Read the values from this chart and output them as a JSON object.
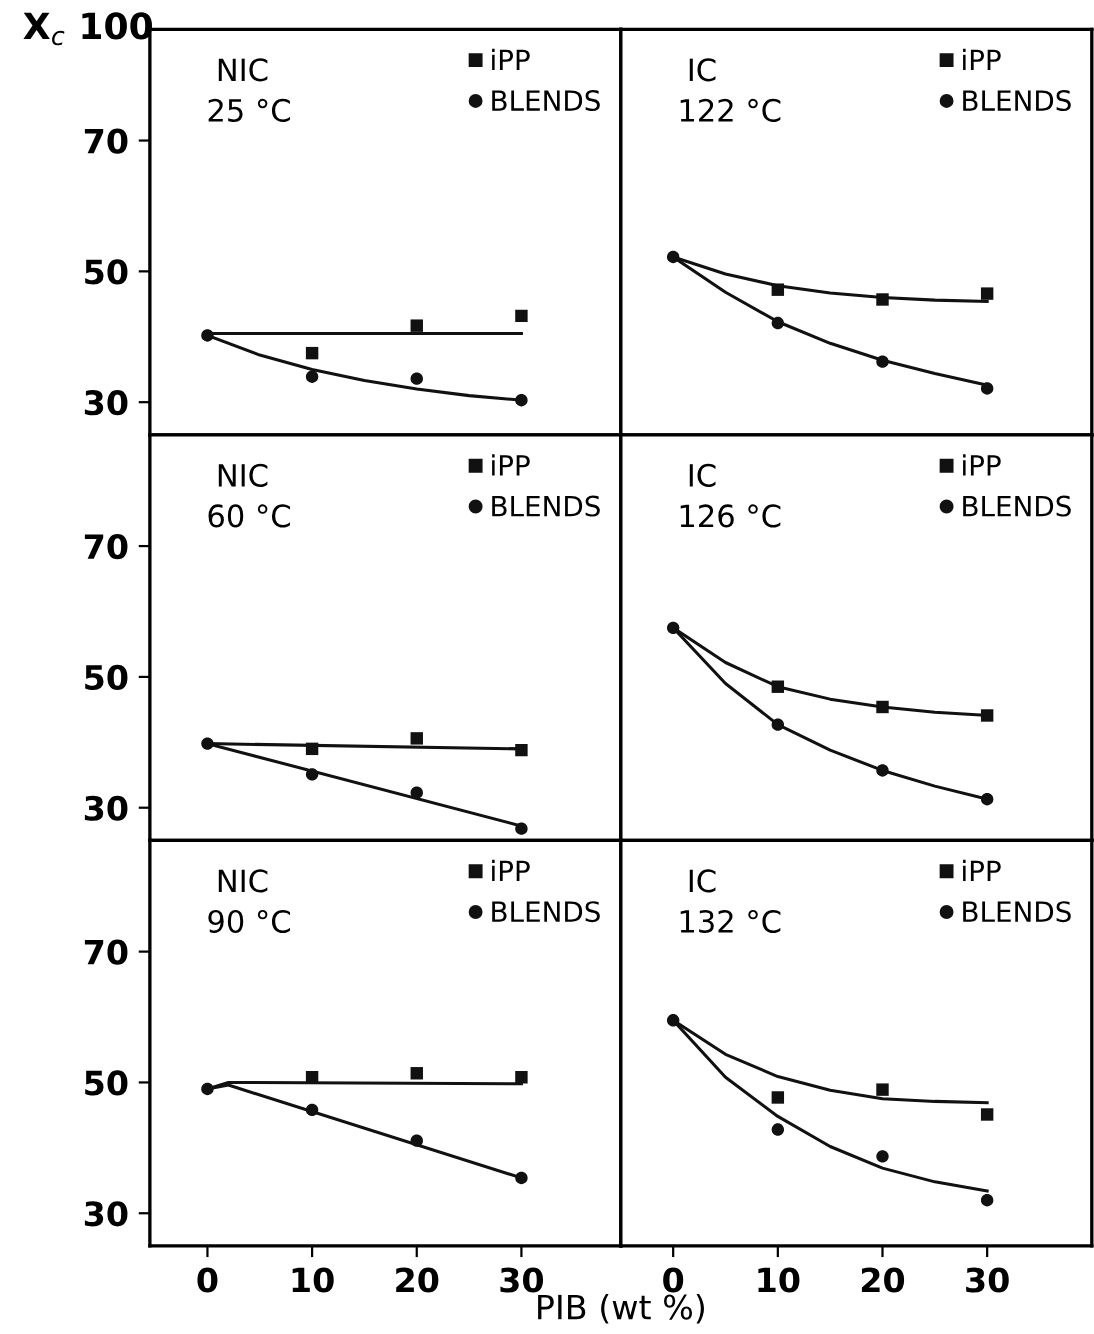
{
  "chart_data": [
    {
      "type": "scatter",
      "ylabel": "X$_{c}$ 100",
      "annotations": [
        "NIC",
        "25 °C"
      ],
      "xlim": [
        -5.5,
        39.5
      ],
      "ylim": [
        25,
        87
      ],
      "xticks": [
        0,
        10,
        20,
        30
      ],
      "yticks": [
        30,
        50,
        70
      ],
      "tick_labels": "y",
      "legend": "top right",
      "grid": false,
      "series": [
        {
          "name": "iPP",
          "marker": "square",
          "color": "#111111",
          "x": [
            10,
            20,
            30
          ],
          "values": [
            37.5,
            41.7,
            43.2
          ]
        },
        {
          "name": "BLENDS",
          "marker": "circle",
          "color": "#111111",
          "x": [
            0,
            10,
            20,
            30
          ],
          "values": [
            40.2,
            33.9,
            33.6,
            30.3
          ]
        },
        {
          "type": "line",
          "color": "#111111",
          "x": [
            0,
            30
          ],
          "values": [
            40.5,
            40.5
          ]
        },
        {
          "type": "line",
          "color": "#111111",
          "x": [
            0,
            5,
            10,
            15,
            20,
            25,
            30
          ],
          "values": [
            40.2,
            37.2,
            35.0,
            33.3,
            32.0,
            31.0,
            30.3
          ]
        }
      ]
    },
    {
      "type": "scatter",
      "annotations": [
        "IC",
        "122 °C"
      ],
      "xlim": [
        -5,
        40
      ],
      "ylim": [
        25,
        87
      ],
      "xticks": [
        0,
        10,
        20,
        30
      ],
      "yticks": [
        30,
        50,
        70
      ],
      "tick_labels": false,
      "legend": "top right",
      "grid": false,
      "series": [
        {
          "name": "iPP",
          "marker": "square",
          "color": "#111111",
          "x": [
            10,
            20,
            30
          ],
          "values": [
            47.2,
            45.7,
            46.6
          ]
        },
        {
          "name": "BLENDS",
          "marker": "circle",
          "color": "#111111",
          "x": [
            0,
            10,
            20,
            30
          ],
          "values": [
            52.2,
            42.1,
            36.2,
            32.1
          ]
        },
        {
          "type": "line",
          "color": "#111111",
          "x": [
            0,
            5,
            10,
            15,
            20,
            25,
            30
          ],
          "values": [
            52.2,
            49.6,
            47.8,
            46.7,
            46.0,
            45.6,
            45.4
          ]
        },
        {
          "type": "line",
          "color": "#111111",
          "x": [
            0,
            5,
            10,
            15,
            20,
            25,
            30
          ],
          "values": [
            52.2,
            46.8,
            42.3,
            39.0,
            36.4,
            34.4,
            32.6
          ]
        }
      ]
    },
    {
      "type": "scatter",
      "annotations": [
        "NIC",
        "60 °C"
      ],
      "xlim": [
        -5.5,
        39.5
      ],
      "ylim": [
        25,
        87
      ],
      "xticks": [
        0,
        10,
        20,
        30
      ],
      "yticks": [
        30,
        50,
        70
      ],
      "tick_labels": "y",
      "legend": "top right",
      "grid": false,
      "series": [
        {
          "name": "iPP",
          "marker": "square",
          "color": "#111111",
          "x": [
            10,
            20,
            30
          ],
          "values": [
            39.0,
            40.6,
            38.8
          ]
        },
        {
          "name": "BLENDS",
          "marker": "circle",
          "color": "#111111",
          "x": [
            0,
            10,
            20,
            30
          ],
          "values": [
            39.8,
            35.1,
            32.3,
            26.8
          ]
        },
        {
          "type": "line",
          "color": "#111111",
          "x": [
            0,
            30
          ],
          "values": [
            39.8,
            39.0
          ]
        },
        {
          "type": "line",
          "color": "#111111",
          "x": [
            0,
            30
          ],
          "values": [
            39.8,
            27.2
          ]
        }
      ]
    },
    {
      "type": "scatter",
      "annotations": [
        "IC",
        "126 °C"
      ],
      "xlim": [
        -5,
        40
      ],
      "ylim": [
        25,
        87
      ],
      "xticks": [
        0,
        10,
        20,
        30
      ],
      "yticks": [
        30,
        50,
        70
      ],
      "tick_labels": false,
      "legend": "top right",
      "grid": false,
      "series": [
        {
          "name": "iPP",
          "marker": "square",
          "color": "#111111",
          "x": [
            10,
            20,
            30
          ],
          "values": [
            48.5,
            45.4,
            44.1
          ]
        },
        {
          "name": "BLENDS",
          "marker": "circle",
          "color": "#111111",
          "x": [
            0,
            10,
            20,
            30
          ],
          "values": [
            57.5,
            42.7,
            35.7,
            31.3
          ]
        },
        {
          "type": "line",
          "color": "#111111",
          "x": [
            0,
            5,
            10,
            15,
            20,
            25,
            30
          ],
          "values": [
            57.5,
            52.2,
            48.5,
            46.6,
            45.4,
            44.6,
            44.1
          ]
        },
        {
          "type": "line",
          "color": "#111111",
          "x": [
            0,
            5,
            10,
            15,
            20,
            25,
            30
          ],
          "values": [
            57.5,
            49.0,
            42.7,
            38.8,
            35.7,
            33.3,
            31.3
          ]
        }
      ]
    },
    {
      "type": "scatter",
      "annotations": [
        "NIC",
        "90 °C"
      ],
      "xlabel": "PIB (wt %)",
      "xlim": [
        -5.5,
        39.5
      ],
      "ylim": [
        25,
        87
      ],
      "xticks": [
        0,
        10,
        20,
        30
      ],
      "yticks": [
        30,
        50,
        70
      ],
      "legend": "top right",
      "grid": false,
      "series": [
        {
          "name": "iPP",
          "marker": "square",
          "color": "#111111",
          "x": [
            10,
            20,
            30
          ],
          "values": [
            50.8,
            51.4,
            50.8
          ]
        },
        {
          "name": "BLENDS",
          "marker": "circle",
          "color": "#111111",
          "x": [
            0,
            10,
            20,
            30
          ],
          "values": [
            49.0,
            45.8,
            41.1,
            35.4
          ]
        },
        {
          "type": "line",
          "color": "#111111",
          "x": [
            0,
            2,
            30
          ],
          "values": [
            49.0,
            50.0,
            49.8
          ]
        },
        {
          "type": "line",
          "color": "#111111",
          "x": [
            0,
            2,
            30
          ],
          "values": [
            49.0,
            49.6,
            35.4
          ]
        }
      ]
    },
    {
      "type": "scatter",
      "annotations": [
        "IC",
        "132 °C"
      ],
      "xlim": [
        -5,
        40
      ],
      "ylim": [
        25,
        87
      ],
      "xticks": [
        0,
        10,
        20,
        30
      ],
      "yticks": [
        30,
        50,
        70
      ],
      "tick_labels": "x",
      "legend": "top right",
      "grid": false,
      "series": [
        {
          "name": "iPP",
          "marker": "square",
          "color": "#111111",
          "x": [
            10,
            20,
            30
          ],
          "values": [
            47.7,
            48.9,
            45.1
          ]
        },
        {
          "name": "BLENDS",
          "marker": "circle",
          "color": "#111111",
          "x": [
            0,
            10,
            20,
            30
          ],
          "values": [
            59.5,
            42.8,
            38.7,
            32.0
          ]
        },
        {
          "type": "line",
          "color": "#111111",
          "x": [
            0,
            5,
            10,
            15,
            20,
            25,
            30
          ],
          "values": [
            59.5,
            54.3,
            50.9,
            48.8,
            47.5,
            47.1,
            46.9
          ]
        },
        {
          "type": "line",
          "color": "#111111",
          "x": [
            0,
            5,
            10,
            15,
            20,
            25,
            30
          ],
          "values": [
            59.5,
            50.8,
            44.8,
            40.2,
            36.9,
            34.8,
            33.4
          ]
        }
      ]
    }
  ]
}
